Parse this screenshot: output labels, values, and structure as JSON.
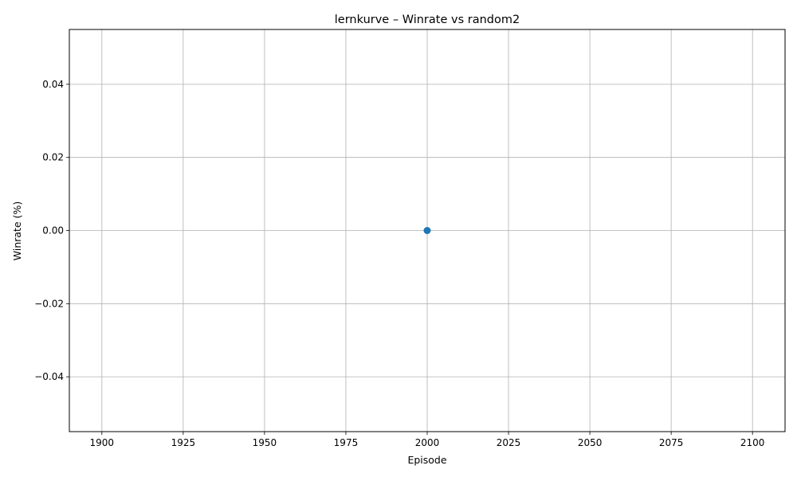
{
  "chart_data": {
    "type": "line",
    "title": "lernkurve – Winrate vs random2",
    "xlabel": "Episode",
    "ylabel": "Winrate (%)",
    "xlim": [
      1890,
      2110
    ],
    "ylim": [
      -0.055,
      0.055
    ],
    "x_ticks": [
      "1900",
      "1925",
      "1950",
      "1975",
      "2000",
      "2025",
      "2050",
      "2075",
      "2100"
    ],
    "y_ticks": [
      "−0.04",
      "−0.02",
      "0.00",
      "0.02",
      "0.04"
    ],
    "grid": true,
    "series": [
      {
        "color": "#1f77b4",
        "marker": "circle",
        "points": [
          {
            "x": 2000,
            "y": 0.0
          }
        ]
      }
    ]
  }
}
